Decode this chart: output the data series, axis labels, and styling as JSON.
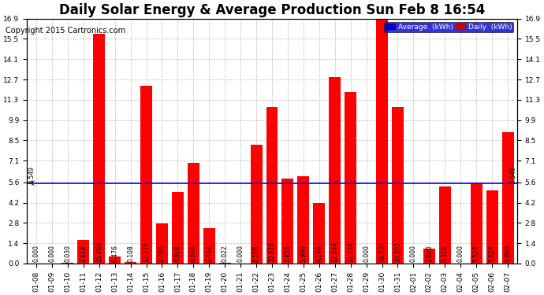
{
  "title": "Daily Solar Energy & Average Production Sun Feb 8 16:54",
  "copyright": "Copyright 2015 Cartronics.com",
  "categories": [
    "01-08",
    "01-09",
    "01-10",
    "01-11",
    "01-12",
    "01-13",
    "01-14",
    "01-15",
    "01-16",
    "01-17",
    "01-18",
    "01-19",
    "01-20",
    "01-21",
    "01-22",
    "01-23",
    "01-24",
    "01-25",
    "01-26",
    "01-27",
    "01-28",
    "01-29",
    "01-30",
    "01-31",
    "02-01",
    "02-02",
    "02-03",
    "02-04",
    "02-05",
    "02-06",
    "02-07"
  ],
  "values": [
    0.0,
    0.0,
    0.03,
    1.618,
    15.86,
    0.476,
    0.108,
    12.276,
    2.76,
    4.928,
    6.938,
    2.462,
    0.022,
    0.0,
    8.198,
    10.816,
    5.856,
    5.996,
    4.148,
    12.844,
    11.824,
    0.0,
    16.93,
    10.802,
    0.0,
    1.04,
    5.316,
    0.0,
    5.528,
    5.028,
    9.06
  ],
  "average": 5.549,
  "ylim": [
    0.0,
    16.9
  ],
  "yticks": [
    0.0,
    1.4,
    2.8,
    4.2,
    5.6,
    7.1,
    8.5,
    9.9,
    11.3,
    12.7,
    14.1,
    15.5,
    16.9
  ],
  "bar_color": "#ff0000",
  "avg_color": "#0000ff",
  "bg_color": "#ffffff",
  "grid_color": "#bbbbbb",
  "title_fontsize": 12,
  "copyright_fontsize": 7,
  "tick_fontsize": 6.5,
  "value_fontsize": 5.5,
  "legend_avg_bg": "#0000cc",
  "legend_daily_bg": "#cc0000",
  "avg_label": "Average  (kWh)",
  "daily_label": "Daily  (kWh)"
}
